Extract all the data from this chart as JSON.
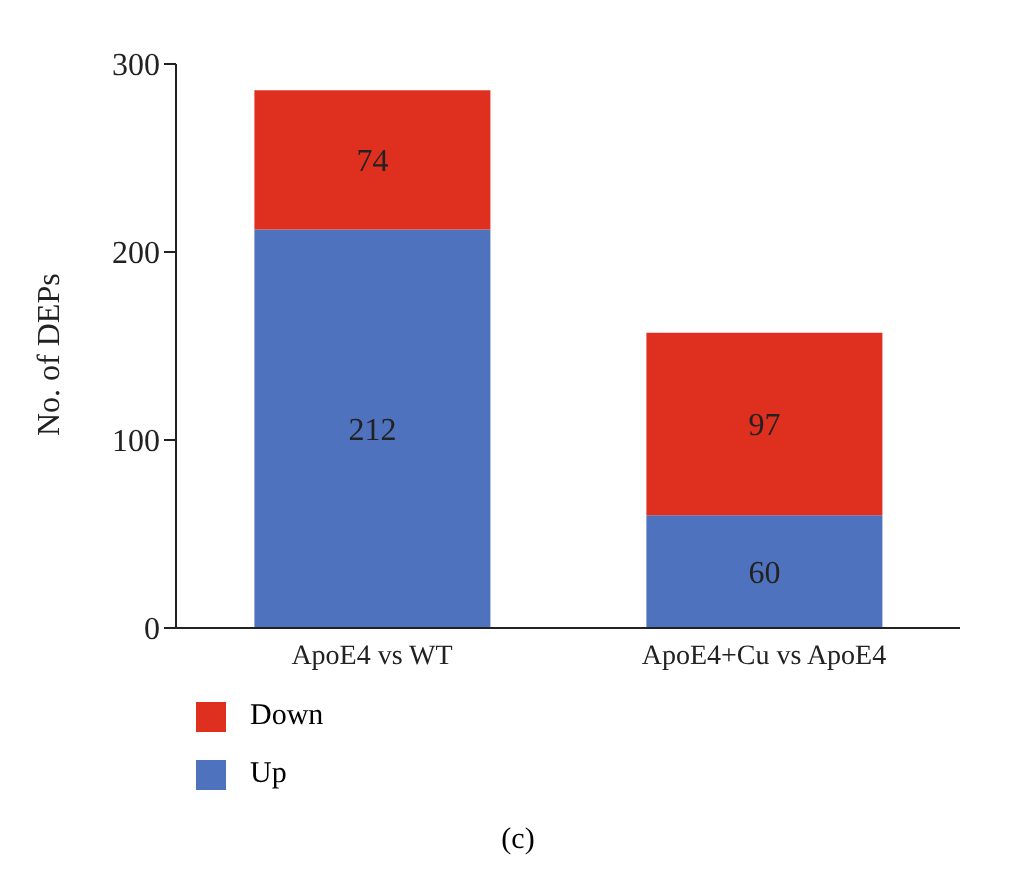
{
  "chart_data": {
    "type": "bar",
    "stacked": true,
    "ylabel": "No. of DEPs",
    "categories": [
      "ApoE4 vs WT",
      "ApoE4+Cu vs ApoE4"
    ],
    "series": [
      {
        "name": "Up",
        "color": "#4f72be",
        "values": [
          212,
          60
        ]
      },
      {
        "name": "Down",
        "color": "#df2f1e",
        "values": [
          74,
          97
        ]
      }
    ],
    "ylim": [
      0,
      300
    ],
    "yticks": [
      0,
      100,
      200,
      300
    ],
    "legend": "bottom left",
    "data_labels": true,
    "annotations": [
      "(c)"
    ]
  }
}
